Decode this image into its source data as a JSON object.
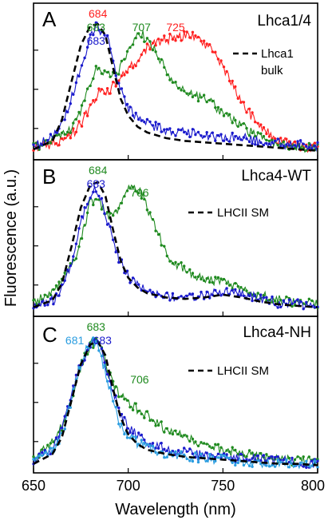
{
  "chart_data": [
    {
      "type": "line",
      "panel": "A",
      "title": "Lhca1/4",
      "xlim": [
        650,
        800
      ],
      "series": [
        {
          "color": "#ff2020",
          "x": [
            650,
            660,
            670,
            675,
            680,
            685,
            690,
            695,
            700,
            705,
            710,
            715,
            720,
            725,
            730,
            735,
            740,
            745,
            750,
            755,
            760,
            765,
            770,
            775,
            780,
            790,
            800
          ],
          "y": [
            0.05,
            0.08,
            0.14,
            0.22,
            0.34,
            0.45,
            0.46,
            0.53,
            0.6,
            0.68,
            0.76,
            0.79,
            0.82,
            0.84,
            0.85,
            0.84,
            0.8,
            0.74,
            0.62,
            0.5,
            0.38,
            0.28,
            0.2,
            0.14,
            0.1,
            0.06,
            0.05
          ]
        },
        {
          "color": "#1f8a1f",
          "x": [
            650,
            660,
            670,
            675,
            680,
            683,
            686,
            690,
            695,
            700,
            705,
            707,
            710,
            715,
            720,
            725,
            730,
            735,
            740,
            745,
            750,
            760,
            770,
            780,
            790,
            800
          ],
          "y": [
            0.05,
            0.1,
            0.18,
            0.32,
            0.52,
            0.62,
            0.58,
            0.56,
            0.6,
            0.72,
            0.85,
            0.86,
            0.82,
            0.72,
            0.6,
            0.5,
            0.44,
            0.42,
            0.4,
            0.36,
            0.3,
            0.2,
            0.12,
            0.08,
            0.06,
            0.04
          ]
        },
        {
          "color": "#1a1acc",
          "x": [
            650,
            660,
            665,
            670,
            675,
            680,
            683,
            686,
            690,
            693,
            695,
            700,
            705,
            710,
            715,
            720,
            730,
            740,
            750,
            760,
            770,
            780,
            790,
            800
          ],
          "y": [
            0.07,
            0.13,
            0.22,
            0.4,
            0.62,
            0.84,
            0.92,
            0.88,
            0.8,
            0.62,
            0.5,
            0.34,
            0.26,
            0.22,
            0.2,
            0.18,
            0.16,
            0.14,
            0.13,
            0.12,
            0.1,
            0.08,
            0.07,
            0.06
          ]
        },
        {
          "color": "#000000",
          "dashed": true,
          "x": [
            650,
            660,
            665,
            670,
            675,
            680,
            684,
            688,
            692,
            696,
            700,
            705,
            710,
            720,
            730,
            740,
            750,
            760,
            770,
            780,
            790,
            800
          ],
          "y": [
            0.04,
            0.1,
            0.25,
            0.52,
            0.78,
            0.92,
            0.93,
            0.85,
            0.62,
            0.4,
            0.28,
            0.2,
            0.16,
            0.12,
            0.1,
            0.09,
            0.08,
            0.07,
            0.06,
            0.05,
            0.04,
            0.03
          ]
        }
      ],
      "peak_labels": [
        {
          "text": "684",
          "color": "#ff2020",
          "x": 684
        },
        {
          "text": "683",
          "color": "#1f8a1f",
          "x": 683
        },
        {
          "text": "683",
          "color": "#1a1acc",
          "x": 683
        },
        {
          "text": "707",
          "color": "#1f8a1f",
          "x": 707
        },
        {
          "text": "725",
          "color": "#ff2020",
          "x": 725
        }
      ],
      "legend": [
        {
          "label_line1": "Lhca1",
          "label_line2": "bulk",
          "style": "dashed"
        }
      ]
    },
    {
      "type": "line",
      "panel": "B",
      "title": "Lhca4-WT",
      "xlim": [
        650,
        800
      ],
      "series": [
        {
          "color": "#1f8a1f",
          "x": [
            650,
            660,
            665,
            670,
            675,
            680,
            684,
            688,
            692,
            696,
            700,
            703,
            706,
            710,
            715,
            720,
            725,
            730,
            735,
            740,
            750,
            760,
            770,
            780,
            790,
            800
          ],
          "y": [
            0.06,
            0.14,
            0.22,
            0.32,
            0.5,
            0.78,
            0.8,
            0.7,
            0.66,
            0.78,
            0.88,
            0.89,
            0.86,
            0.74,
            0.58,
            0.42,
            0.34,
            0.3,
            0.26,
            0.24,
            0.2,
            0.16,
            0.12,
            0.08,
            0.06,
            0.05
          ]
        },
        {
          "color": "#1a1acc",
          "x": [
            650,
            660,
            665,
            670,
            675,
            680,
            683,
            686,
            690,
            695,
            700,
            705,
            710,
            720,
            730,
            740,
            750,
            760,
            770,
            780,
            790,
            800
          ],
          "y": [
            0.05,
            0.08,
            0.16,
            0.36,
            0.62,
            0.84,
            0.88,
            0.8,
            0.6,
            0.38,
            0.24,
            0.18,
            0.14,
            0.11,
            0.1,
            0.12,
            0.14,
            0.12,
            0.09,
            0.06,
            0.05,
            0.04
          ]
        },
        {
          "color": "#000000",
          "dashed": true,
          "x": [
            650,
            660,
            665,
            670,
            675,
            680,
            684,
            688,
            692,
            696,
            700,
            705,
            710,
            720,
            730,
            740,
            750,
            760,
            770,
            780,
            790,
            800
          ],
          "y": [
            0.03,
            0.08,
            0.2,
            0.46,
            0.74,
            0.9,
            0.92,
            0.82,
            0.58,
            0.36,
            0.24,
            0.17,
            0.13,
            0.1,
            0.09,
            0.1,
            0.12,
            0.1,
            0.07,
            0.05,
            0.04,
            0.03
          ]
        }
      ],
      "peak_labels": [
        {
          "text": "684",
          "color": "#1f8a1f",
          "x": 684
        },
        {
          "text": "683",
          "color": "#1a1acc",
          "x": 683
        },
        {
          "text": "706",
          "color": "#1f8a1f",
          "x": 706
        }
      ],
      "legend": [
        {
          "label_line1": "LHCII SM",
          "label_line2": "",
          "style": "dashed"
        }
      ]
    },
    {
      "type": "line",
      "panel": "C",
      "title": "Lhca4-NH",
      "xlim": [
        650,
        800
      ],
      "series": [
        {
          "color": "#1f8a1f",
          "x": [
            650,
            660,
            665,
            670,
            675,
            680,
            683,
            686,
            690,
            695,
            700,
            705,
            710,
            715,
            720,
            730,
            740,
            750,
            760,
            770,
            780,
            790,
            800
          ],
          "y": [
            0.06,
            0.18,
            0.3,
            0.5,
            0.72,
            0.88,
            0.9,
            0.84,
            0.66,
            0.52,
            0.46,
            0.42,
            0.38,
            0.33,
            0.28,
            0.22,
            0.17,
            0.13,
            0.1,
            0.08,
            0.06,
            0.05,
            0.04
          ]
        },
        {
          "color": "#1a1acc",
          "x": [
            650,
            660,
            665,
            670,
            675,
            680,
            683,
            686,
            690,
            695,
            700,
            710,
            720,
            730,
            740,
            750,
            760,
            770,
            780,
            790,
            800
          ],
          "y": [
            0.05,
            0.14,
            0.28,
            0.52,
            0.74,
            0.88,
            0.9,
            0.84,
            0.64,
            0.42,
            0.28,
            0.18,
            0.14,
            0.11,
            0.09,
            0.08,
            0.07,
            0.06,
            0.05,
            0.04,
            0.03
          ]
        },
        {
          "color": "#2a9de0",
          "x": [
            650,
            660,
            665,
            670,
            675,
            678,
            681,
            684,
            688,
            692,
            696,
            700,
            710,
            720,
            730,
            740,
            750,
            760,
            770,
            780,
            790,
            800
          ],
          "y": [
            0.04,
            0.12,
            0.24,
            0.48,
            0.74,
            0.86,
            0.9,
            0.86,
            0.68,
            0.46,
            0.3,
            0.22,
            0.14,
            0.1,
            0.08,
            0.07,
            0.06,
            0.05,
            0.04,
            0.03,
            0.03,
            0.02
          ]
        },
        {
          "color": "#000000",
          "dashed": true,
          "x": [
            650,
            660,
            665,
            670,
            675,
            680,
            684,
            688,
            692,
            696,
            700,
            705,
            710,
            720,
            730,
            740,
            750,
            760,
            770,
            780,
            790,
            800
          ],
          "y": [
            0.03,
            0.1,
            0.22,
            0.48,
            0.74,
            0.88,
            0.9,
            0.8,
            0.56,
            0.36,
            0.24,
            0.17,
            0.13,
            0.1,
            0.08,
            0.07,
            0.06,
            0.05,
            0.04,
            0.03,
            0.03,
            0.02
          ]
        }
      ],
      "peak_labels": [
        {
          "text": "683",
          "color": "#1f8a1f",
          "x": 683
        },
        {
          "text": "681",
          "color": "#2a9de0",
          "x": 681
        },
        {
          "text": "683",
          "color": "#1a1acc",
          "x": 683
        },
        {
          "text": "706",
          "color": "#1f8a1f",
          "x": 706
        }
      ],
      "legend": [
        {
          "label_line1": "LHCII SM",
          "label_line2": "",
          "style": "dashed"
        }
      ]
    }
  ],
  "axes": {
    "xlabel": "Wavelength (nm)",
    "ylabel": "Fluorescence (a.u.)",
    "xticks": [
      "650",
      "700",
      "750",
      "800"
    ],
    "xlim": [
      650,
      800
    ]
  }
}
